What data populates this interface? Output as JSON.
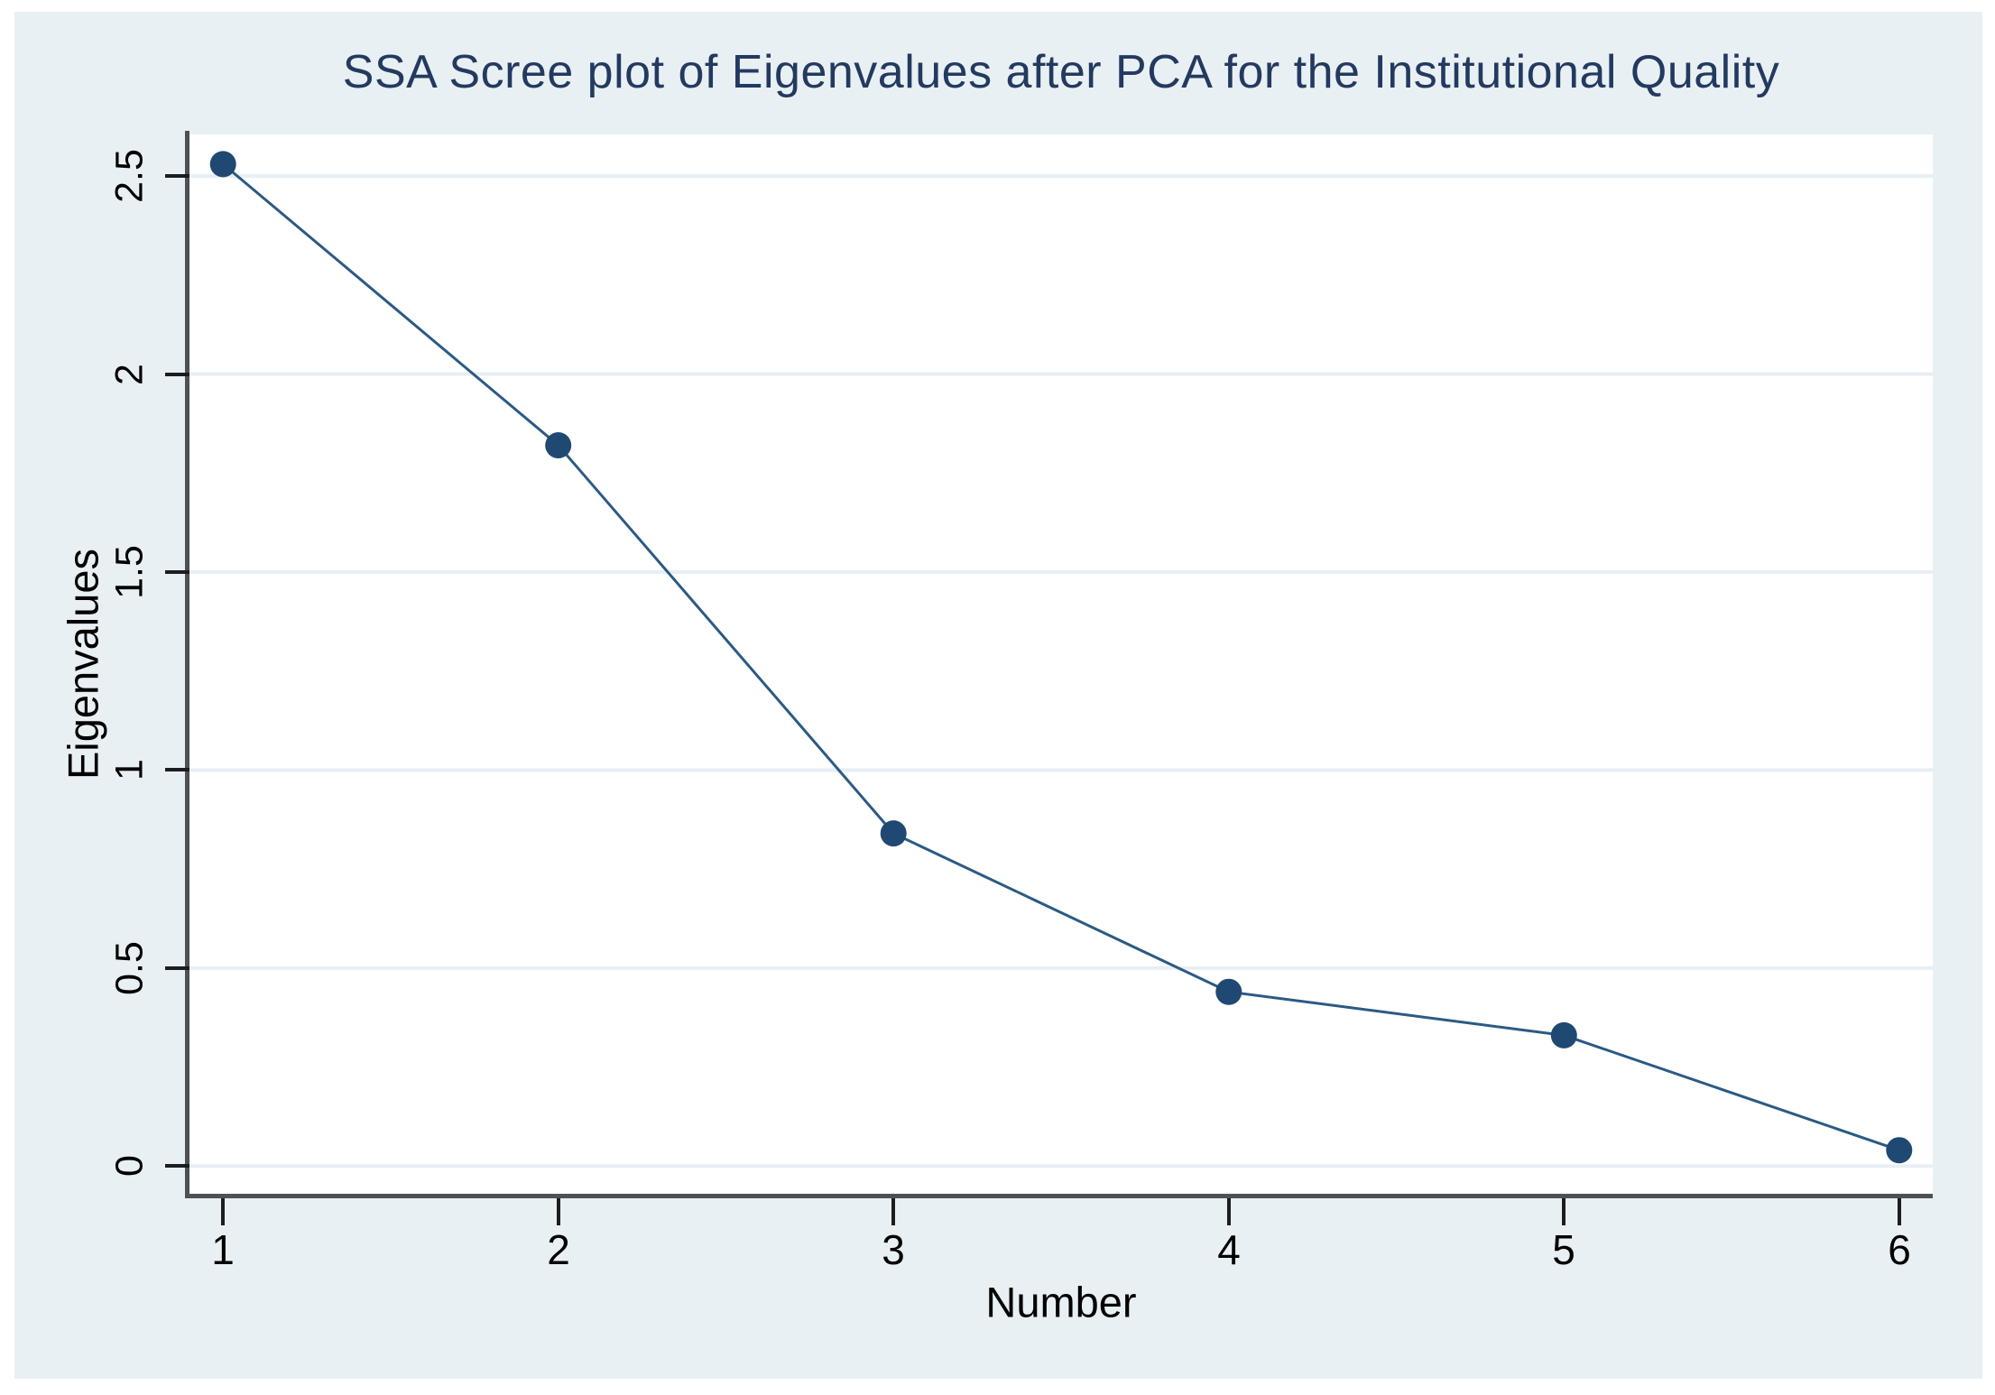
{
  "chart_data": {
    "type": "line",
    "title": "SSA Scree plot of Eigenvalues after PCA for the Institutional Quality",
    "xlabel": "Number",
    "ylabel": "Eigenvalues",
    "x": [
      1,
      2,
      3,
      4,
      5,
      6
    ],
    "y": [
      2.53,
      1.82,
      0.84,
      0.44,
      0.33,
      0.04
    ],
    "series_name": "Eigenvalues",
    "xticks": {
      "values": [
        1,
        2,
        3,
        4,
        5,
        6
      ],
      "labels": [
        "1",
        "2",
        "3",
        "4",
        "5",
        "6"
      ]
    },
    "yticks": {
      "values": [
        0,
        0.5,
        1,
        1.5,
        2,
        2.5
      ],
      "labels": [
        "0",
        "0.5",
        "1",
        "1.5",
        "2",
        "2.5"
      ]
    },
    "xlim": [
      0.9,
      6.1
    ],
    "ylim": [
      -0.07,
      2.605
    ],
    "grid": true,
    "legend_position": "none",
    "marker": "circle",
    "colors": {
      "canvas_background": "#e9f0f4",
      "plot_background": "#ffffff",
      "gridline": "#e7eff4",
      "axis_line": "#4d5154",
      "tick_mark": "#1b1d1f",
      "tick_label": "#000000",
      "title": "#233a60",
      "line": "#2b5a84",
      "marker_fill": "#1f4972"
    }
  }
}
